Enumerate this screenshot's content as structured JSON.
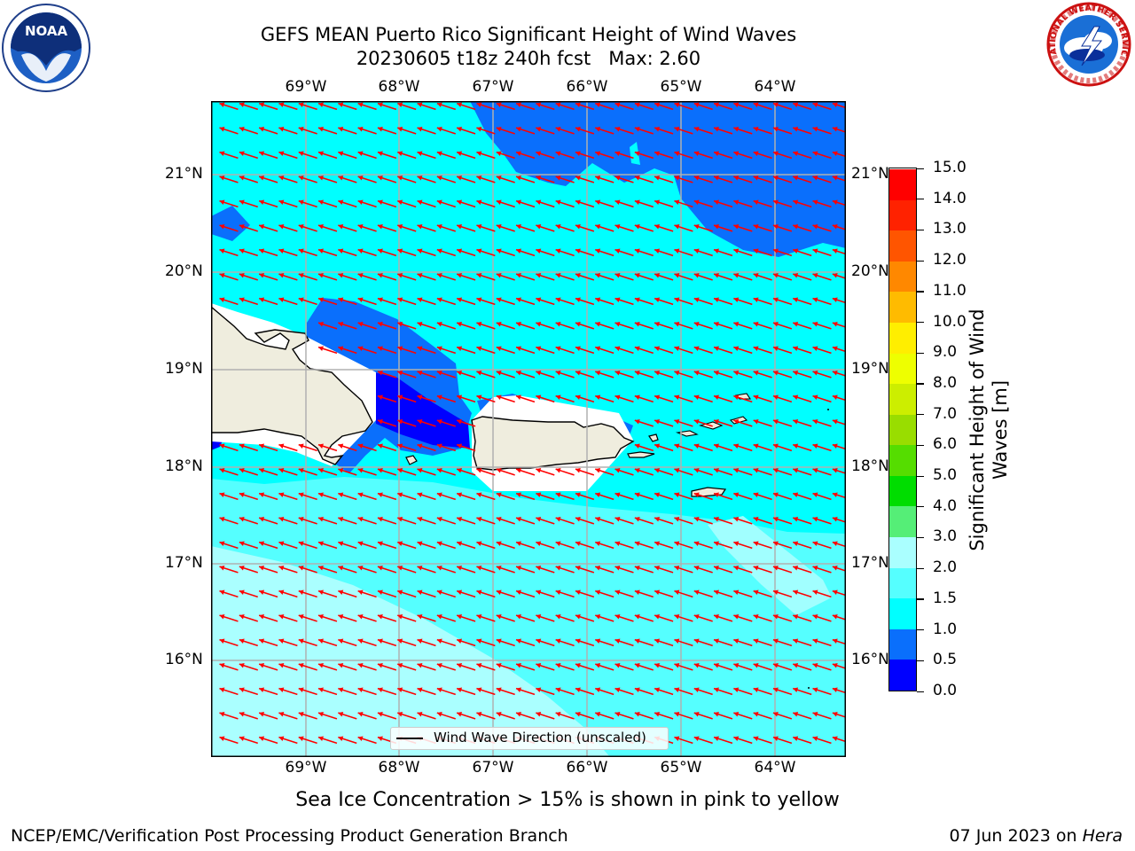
{
  "title": {
    "line1": "GEFS MEAN Puerto Rico Significant Height of Wind Waves",
    "line2": "20230605 t18z 240h fcst   Max: 2.60"
  },
  "map": {
    "lon_labels": [
      "69°W",
      "68°W",
      "67°W",
      "66°W",
      "65°W",
      "64°W"
    ],
    "lat_labels": [
      "21°N",
      "20°N",
      "19°N",
      "18°N",
      "17°N",
      "16°N"
    ],
    "legend_text": "Wind Wave Direction (unscaled)",
    "wave_direction": "toward west-northwest",
    "colors": {
      "land": "#efedde",
      "vector": "#ff0000",
      "grid": "#b0b0b0",
      "band_0_0_5": "#0000ff",
      "band_0_5_1": "#0a6ffc",
      "band_1_1_5": "#00ffff",
      "band_1_5_2": "#55ffff",
      "band_2_3": "#aaffff"
    }
  },
  "colorbar": {
    "label": "Significant Height of Wind\nWaves [m]",
    "ticks": [
      "0.0",
      "0.5",
      "1.0",
      "1.5",
      "2.0",
      "3.0",
      "4.0",
      "5.0",
      "6.0",
      "7.0",
      "8.0",
      "9.0",
      "10.0",
      "11.0",
      "12.0",
      "13.0",
      "14.0",
      "15.0"
    ],
    "colors": [
      "#0000ff",
      "#0a6ffc",
      "#00ffff",
      "#55ffff",
      "#aaffff",
      "#55ee77",
      "#00dd00",
      "#55dd00",
      "#99dd00",
      "#ccee00",
      "#eeff00",
      "#ffee00",
      "#ffbb00",
      "#ff8800",
      "#ff5500",
      "#ff2200",
      "#ff0000"
    ]
  },
  "logos": {
    "noaa": "NOAA",
    "nws_ring": "NATIONAL WEATHER SERVICE"
  },
  "subtitle": "Sea Ice Concentration > 15% is shown in pink to yellow",
  "footer": {
    "left": "NCEP/EMC/Verification Post Processing Product Generation Branch",
    "right_date": "07 Jun 2023 on ",
    "right_machine": "Hera"
  }
}
